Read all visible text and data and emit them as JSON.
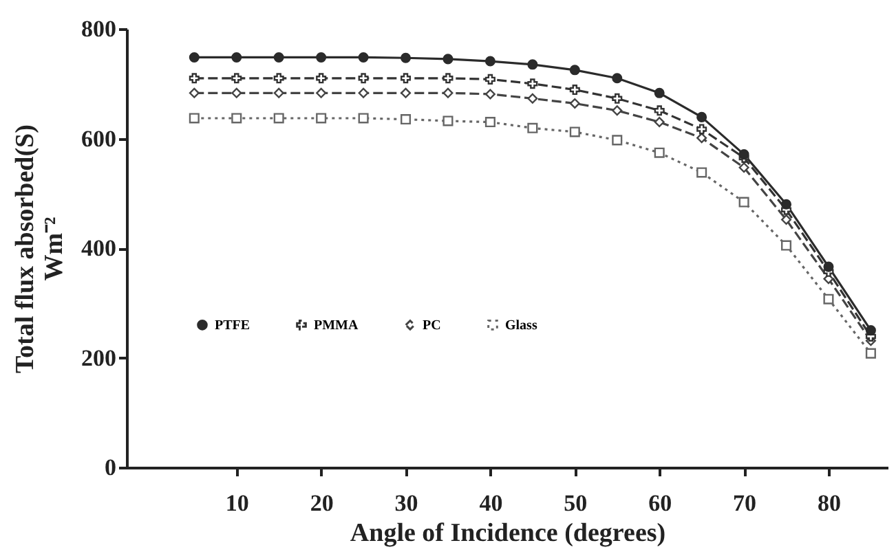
{
  "chart_data": {
    "type": "line",
    "xlabel": "Angle of Incidence (degrees)",
    "ylabel": "Total flux absorbed(S)\nWm⁻²",
    "x": [
      5,
      10,
      15,
      20,
      25,
      30,
      35,
      40,
      45,
      50,
      55,
      60,
      65,
      70,
      75,
      80,
      85
    ],
    "series": [
      {
        "name": "PTFE",
        "color": "#2b2b2b",
        "marker": "circle",
        "line_style": "solid",
        "values": [
          748,
          748,
          748,
          748,
          748,
          747,
          745,
          741,
          735,
          725,
          710,
          683,
          639,
          571,
          480,
          366,
          250
        ]
      },
      {
        "name": "PMMA",
        "color": "#333333",
        "marker": "cross",
        "line_style": "dashed",
        "values": [
          710,
          710,
          710,
          710,
          710,
          710,
          710,
          708,
          700,
          689,
          673,
          651,
          617,
          565,
          470,
          357,
          239
        ]
      },
      {
        "name": "PC",
        "color": "#444444",
        "marker": "diamond",
        "line_style": "dashed",
        "values": [
          683,
          683,
          683,
          683,
          683,
          683,
          683,
          681,
          673,
          664,
          651,
          630,
          601,
          547,
          452,
          344,
          231
        ]
      },
      {
        "name": "Glass",
        "color": "#666666",
        "marker": "square",
        "line_style": "dotted",
        "values": [
          637,
          637,
          637,
          637,
          637,
          635,
          632,
          630,
          619,
          612,
          597,
          574,
          538,
          484,
          405,
          307,
          208
        ]
      }
    ],
    "xlim": [
      -3,
      87
    ],
    "xticks": [
      10,
      20,
      30,
      40,
      50,
      60,
      70,
      80
    ],
    "ylim": [
      0,
      800
    ],
    "yticks": [
      0,
      200,
      400,
      600,
      800
    ],
    "grid": false,
    "legend": "bottom"
  }
}
